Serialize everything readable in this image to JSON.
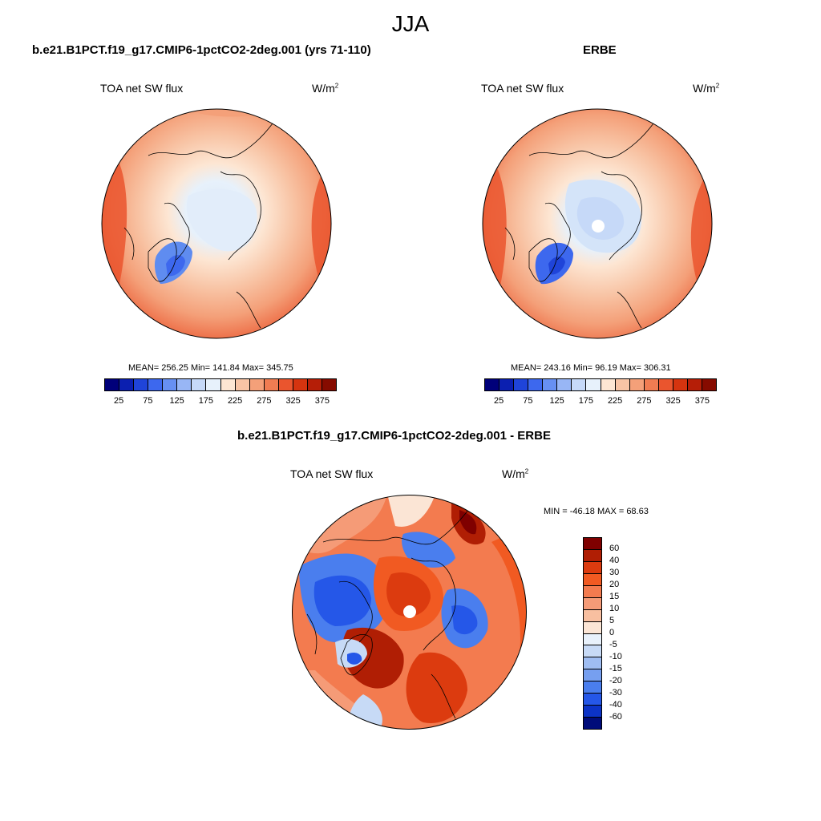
{
  "figure": {
    "season": "JJA"
  },
  "panels": [
    {
      "title": "b.e21.B1PCT.f19_g17.CMIP6-1pctCO2-2deg.001 (yrs 71-110)",
      "variable": "TOA net SW flux",
      "units_base": "W/m",
      "units_exp": "2",
      "stats": "MEAN= 256.25  Min= 141.84  Max= 345.75"
    },
    {
      "title": "ERBE",
      "variable": "TOA net SW flux",
      "units_base": "W/m",
      "units_exp": "2",
      "stats": "MEAN= 243.16  Min=  96.19  Max= 306.31"
    },
    {
      "title": "b.e21.B1PCT.f19_g17.CMIP6-1pctCO2-2deg.001 - ERBE",
      "variable": "TOA net SW flux",
      "units_base": "W/m",
      "units_exp": "2",
      "stats": "MIN = -46.18 MAX =  68.63"
    }
  ],
  "colorbars": {
    "abs": {
      "colors": [
        "#00007a",
        "#0b1fb0",
        "#1f44d9",
        "#3d68ee",
        "#6790f2",
        "#98b6f5",
        "#c6d9f8",
        "#e7f1fb",
        "#fde6d3",
        "#f8c4a5",
        "#f4a079",
        "#f07c52",
        "#ea552e",
        "#d5340f",
        "#b51e07",
        "#860b00"
      ],
      "labels": [
        "25",
        "75",
        "125",
        "175",
        "225",
        "275",
        "325",
        "375"
      ]
    },
    "diff": {
      "colors": [
        "#7f0000",
        "#b01e04",
        "#dc3b0f",
        "#f15a22",
        "#f37b4f",
        "#f59b77",
        "#f8bfa0",
        "#fbe5d5",
        "#e8f1fb",
        "#c7daf6",
        "#9fbdf2",
        "#769ff0",
        "#4a7eee",
        "#2557e8",
        "#0c33c7",
        "#000c7a"
      ],
      "labels": [
        "60",
        "40",
        "30",
        "20",
        "15",
        "10",
        "5",
        "0",
        "-5",
        "-10",
        "-15",
        "-20",
        "-30",
        "-40",
        "-60"
      ]
    }
  }
}
